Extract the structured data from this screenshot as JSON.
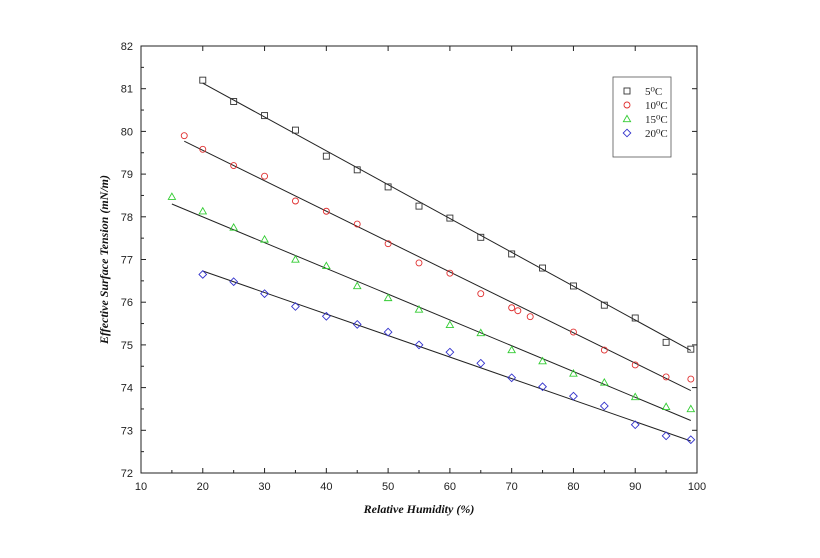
{
  "chart_data": {
    "type": "scatter",
    "xlabel": "Relative Humidity (%)",
    "ylabel": "Effective Surface Tension (mN/m)",
    "xlim": [
      10,
      100
    ],
    "ylim": [
      72,
      82
    ],
    "x_ticks": [
      "10",
      "20",
      "30",
      "40",
      "50",
      "60",
      "70",
      "80",
      "90",
      "100"
    ],
    "y_ticks": [
      "72",
      "73",
      "74",
      "75",
      "76",
      "77",
      "78",
      "79",
      "80",
      "81",
      "82"
    ],
    "legend_position": "top-right",
    "grid": false,
    "series": [
      {
        "name": "5⁰C",
        "marker": "square",
        "color": "#333333",
        "x": [
          20,
          25,
          30,
          35,
          40,
          45,
          50,
          55,
          60,
          65,
          70,
          75,
          80,
          85,
          90,
          95,
          99
        ],
        "y": [
          81.2,
          80.7,
          80.37,
          80.03,
          79.42,
          79.1,
          78.7,
          78.25,
          77.97,
          77.52,
          77.13,
          76.8,
          76.38,
          75.93,
          75.63,
          75.06,
          74.9
        ],
        "fit": [
          [
            20,
            81.13
          ],
          [
            99,
            74.87
          ]
        ]
      },
      {
        "name": "10⁰C",
        "marker": "circle",
        "color": "#e03030",
        "x": [
          17,
          20,
          25,
          30,
          35,
          40,
          45,
          50,
          55,
          60,
          65,
          70,
          71,
          73,
          80,
          85,
          90,
          95,
          99
        ],
        "y": [
          79.9,
          79.58,
          79.2,
          78.95,
          78.37,
          78.13,
          77.83,
          77.37,
          76.92,
          76.68,
          76.2,
          75.87,
          75.8,
          75.66,
          75.3,
          74.88,
          74.53,
          74.25,
          74.2
        ],
        "fit": [
          [
            17,
            79.77
          ],
          [
            99,
            73.93
          ]
        ]
      },
      {
        "name": "15⁰C",
        "marker": "triangle",
        "color": "#33cc33",
        "x": [
          15,
          20,
          25,
          30,
          35,
          40,
          45,
          50,
          55,
          60,
          65,
          70,
          75,
          80,
          85,
          90,
          95,
          99
        ],
        "y": [
          78.47,
          78.13,
          77.75,
          77.47,
          77.0,
          76.85,
          76.38,
          76.1,
          75.83,
          75.47,
          75.28,
          74.88,
          74.62,
          74.33,
          74.12,
          73.78,
          73.55,
          73.5
        ],
        "fit": [
          [
            15,
            78.3
          ],
          [
            99,
            73.23
          ]
        ]
      },
      {
        "name": "20⁰C",
        "marker": "diamond",
        "color": "#3333cc",
        "x": [
          20,
          25,
          30,
          35,
          40,
          45,
          50,
          55,
          60,
          65,
          70,
          75,
          80,
          85,
          90,
          95,
          99
        ],
        "y": [
          76.65,
          76.48,
          76.2,
          75.9,
          75.67,
          75.48,
          75.3,
          75.0,
          74.83,
          74.57,
          74.23,
          74.02,
          73.8,
          73.57,
          73.13,
          72.87,
          72.78
        ],
        "fit": [
          [
            20,
            76.73
          ],
          [
            99,
            72.75
          ]
        ]
      }
    ]
  }
}
